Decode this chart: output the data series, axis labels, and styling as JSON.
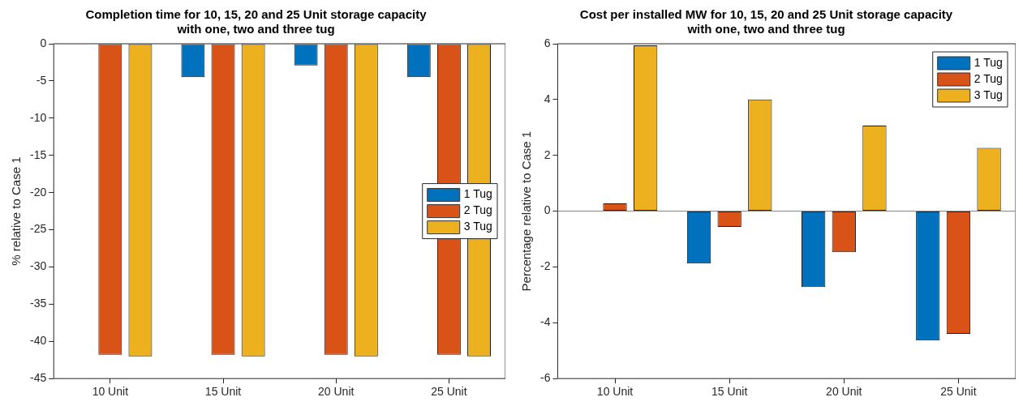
{
  "chart_data": [
    {
      "type": "bar",
      "title": "Completion time for 10, 15, 20 and 25 Unit storage capacity\nwith one, two and three tug",
      "ylabel": "% relative to Case 1",
      "categories": [
        "10 Unit",
        "15 Unit",
        "20 Unit",
        "25 Unit"
      ],
      "series": [
        {
          "name": "1 Tug",
          "color": "#0072bd",
          "values": [
            0,
            -4.5,
            -2.9,
            -4.5
          ]
        },
        {
          "name": "2 Tug",
          "color": "#d95319",
          "values": [
            -41.8,
            -41.8,
            -41.8,
            -41.8
          ]
        },
        {
          "name": "3 Tug",
          "color": "#edb120",
          "values": [
            -42,
            -42,
            -42,
            -42
          ]
        }
      ],
      "ylim": [
        -45,
        0
      ],
      "yticks": [
        -45,
        -40,
        -35,
        -30,
        -25,
        -20,
        -15,
        -10,
        -5,
        0
      ],
      "grid": false,
      "legend": "right"
    },
    {
      "type": "bar",
      "title": "Cost per installed MW for 10, 15, 20 and 25 Unit storage capacity\nwith one, two and three tug",
      "ylabel": "Percentage relative to Case 1",
      "categories": [
        "10 Unit",
        "15 Unit",
        "20 Unit",
        "25 Unit"
      ],
      "series": [
        {
          "name": "1 Tug",
          "color": "#0072bd",
          "values": [
            0,
            -1.88,
            -2.72,
            -4.64
          ]
        },
        {
          "name": "2 Tug",
          "color": "#d95319",
          "values": [
            0.28,
            -0.56,
            -1.47,
            -4.4
          ]
        },
        {
          "name": "3 Tug",
          "color": "#edb120",
          "values": [
            5.94,
            4.0,
            3.07,
            2.27
          ]
        }
      ],
      "ylim": [
        -6,
        6
      ],
      "yticks": [
        -6,
        -4,
        -2,
        0,
        2,
        4,
        6
      ],
      "grid": false,
      "legend": "top right",
      "ref_lines": [
        {
          "axis": "y",
          "value": 0,
          "color": "#808080"
        }
      ]
    }
  ]
}
